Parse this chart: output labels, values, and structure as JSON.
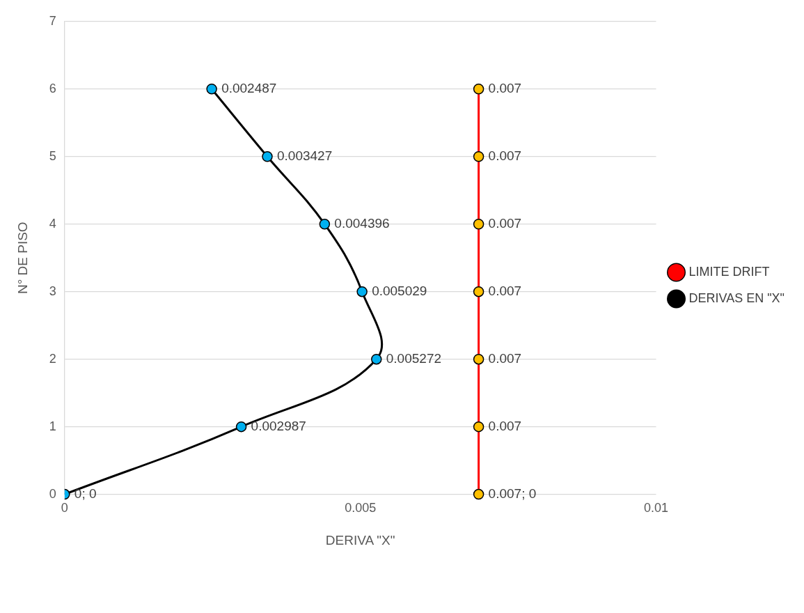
{
  "chart_data": {
    "type": "line",
    "orientation": "horizontal",
    "xlabel": "DERIVA \"X\"",
    "ylabel": "N° DE PISO",
    "categories": [
      "7",
      "6",
      "5",
      "4",
      "3",
      "2",
      "1",
      "0"
    ],
    "xlim": [
      0,
      0.01
    ],
    "xticks": [
      0,
      0.005,
      0.01
    ],
    "grid": "y",
    "legend": "right",
    "marker": "circle",
    "line_style": "solid",
    "series": [
      {
        "name": "LIMITE DRIFT",
        "color": "#ff0000",
        "colors": [
          null,
          "#ffc000",
          "#ffc000",
          "#ffc000",
          "#ffc000",
          "#ffc000",
          "#ffc000",
          "#ffc000"
        ],
        "values": [
          null,
          0.007,
          0.007,
          0.007,
          0.007,
          0.007,
          0.007,
          0.007
        ],
        "value_labels": [
          null,
          "0.007",
          "0.007",
          "0.007",
          "0.007",
          "0.007",
          "0.007",
          "0.007; 0"
        ]
      },
      {
        "name": "DERIVAS EN \"X\"",
        "color": "#000000",
        "colors": [
          null,
          "#00b0f0",
          "#00b0f0",
          "#00b0f0",
          "#00b0f0",
          "#00b0f0",
          "#00b0f0",
          "#00b0f0"
        ],
        "values": [
          null,
          0.002487,
          0.003427,
          0.004396,
          0.005029,
          0.005272,
          0.002987,
          0
        ],
        "value_labels": [
          null,
          "0.002487",
          "0.003427",
          "0.004396",
          "0.005029",
          "0.005272",
          "0.002987",
          "0; 0"
        ]
      }
    ]
  }
}
